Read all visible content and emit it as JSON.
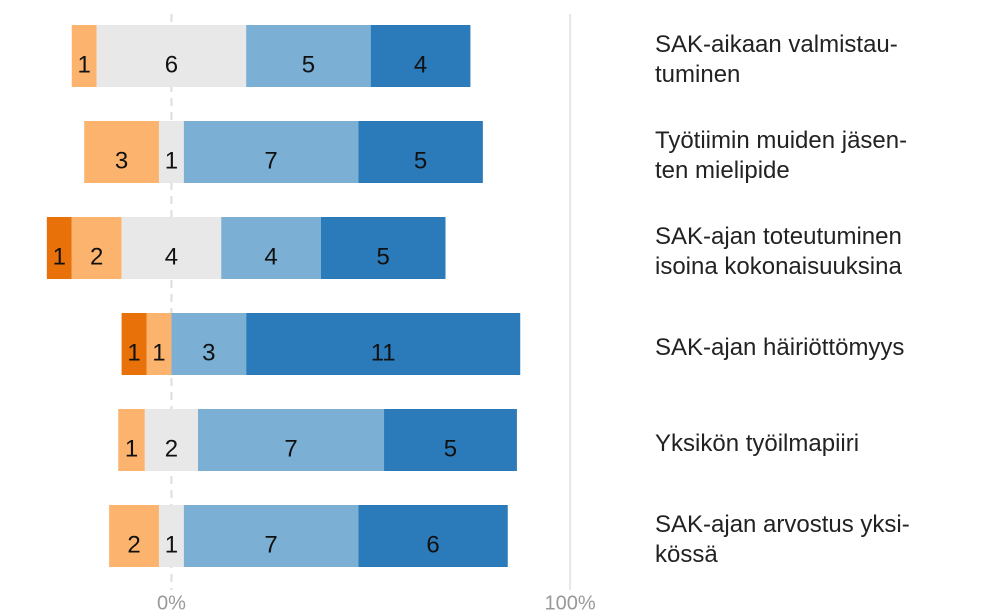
{
  "chart_data": {
    "type": "diverging_bar",
    "categories": [
      "SAK-aikaan valmistau-\ntuminen",
      "Työtiimin muiden jäsen-\nten mielipide",
      "SAK-ajan toteutuminen\nisoina kokonaisuuksina",
      "SAK-ajan häiriöttömyys",
      "Yksikön työilmapiiri",
      "SAK-ajan arvostus yksi-\nkössä"
    ],
    "series": [
      {
        "color": "#e8710a",
        "values": [
          null,
          null,
          1,
          1,
          null,
          null
        ]
      },
      {
        "color": "#fbb36d",
        "values": [
          1,
          3,
          2,
          1,
          1,
          2
        ]
      },
      {
        "color": "#e8e8e8",
        "values": [
          6,
          1,
          4,
          null,
          2,
          1
        ]
      },
      {
        "color": "#7bafd4",
        "values": [
          5,
          7,
          4,
          3,
          7,
          7
        ]
      },
      {
        "color": "#2b7bba",
        "values": [
          4,
          5,
          5,
          11,
          5,
          6
        ]
      }
    ],
    "xlim": [
      -43,
      105
    ],
    "xticks": [
      {
        "value": 0,
        "label": "0%"
      },
      {
        "value": 100,
        "label": "100%"
      }
    ],
    "grid": true
  }
}
